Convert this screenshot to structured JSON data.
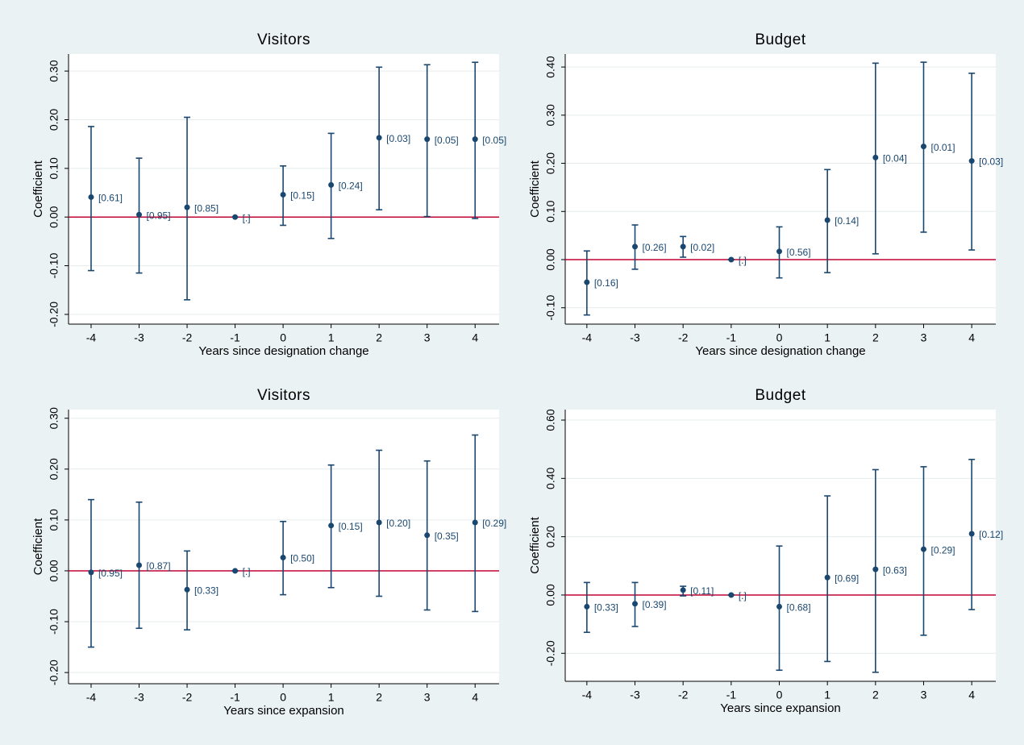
{
  "chart_data": [
    {
      "type": "errorbar",
      "title": "Visitors",
      "xlabel": "Years since designation change",
      "ylabel": "Coefficient",
      "x": [
        -4,
        -3,
        -2,
        -1,
        0,
        1,
        2,
        3,
        4
      ],
      "values": [
        0.041,
        0.005,
        0.02,
        0,
        0.046,
        0.066,
        0.163,
        0.16,
        0.16
      ],
      "ci_low": [
        -0.11,
        -0.115,
        -0.17,
        0,
        -0.017,
        -0.044,
        0.015,
        0.001,
        -0.003
      ],
      "ci_high": [
        0.186,
        0.121,
        0.205,
        0,
        0.105,
        0.172,
        0.308,
        0.313,
        0.318
      ],
      "point_labels": [
        "[0.61]",
        "[0.95]",
        "[0.85]",
        "[.]",
        "[0.15]",
        "[0.24]",
        "[0.03]",
        "[0.05]",
        "[0.05]"
      ],
      "xlim": [
        -4.47,
        4.5
      ],
      "xticks": [
        -4,
        -3,
        -2,
        -1,
        0,
        1,
        2,
        3,
        4
      ],
      "ylim": [
        -0.22,
        0.335
      ],
      "yticks": [
        {
          "value": -0.2,
          "label": "-0.20"
        },
        {
          "value": -0.1,
          "label": "-0.10"
        },
        {
          "value": 0,
          "label": "0.00"
        },
        {
          "value": 0.1,
          "label": "0.10"
        },
        {
          "value": 0.2,
          "label": "0.20"
        },
        {
          "value": 0.3,
          "label": "0.30"
        }
      ],
      "grid": true,
      "color": "#1a476f",
      "hline": 0,
      "hline_color": "#c10534"
    },
    {
      "type": "errorbar",
      "title": "Budget",
      "xlabel": "Years since designation change",
      "ylabel": "Coefficient",
      "x": [
        -4,
        -3,
        -2,
        -1,
        0,
        1,
        2,
        3,
        4
      ],
      "values": [
        -0.047,
        0.027,
        0.027,
        0,
        0.017,
        0.082,
        0.212,
        0.235,
        0.205
      ],
      "ci_low": [
        -0.115,
        -0.02,
        0.005,
        0,
        -0.038,
        -0.027,
        0.012,
        0.057,
        0.02
      ],
      "ci_high": [
        0.018,
        0.072,
        0.048,
        0,
        0.068,
        0.187,
        0.408,
        0.41,
        0.387
      ],
      "point_labels": [
        "[0.16]",
        "[0.26]",
        "[0.02]",
        "[.]",
        "[0.56]",
        "[0.14]",
        "[0.04]",
        "[0.01]",
        "[0.03]"
      ],
      "xlim": [
        -4.45,
        4.5
      ],
      "xticks": [
        -4,
        -3,
        -2,
        -1,
        0,
        1,
        2,
        3,
        4
      ],
      "ylim": [
        -0.134,
        0.427
      ],
      "yticks": [
        {
          "value": -0.1,
          "label": "-0.10"
        },
        {
          "value": 0,
          "label": "0.00"
        },
        {
          "value": 0.1,
          "label": "0.10"
        },
        {
          "value": 0.2,
          "label": "0.20"
        },
        {
          "value": 0.3,
          "label": "0.30"
        },
        {
          "value": 0.4,
          "label": "0.40"
        }
      ],
      "grid": true,
      "color": "#1a476f",
      "hline": 0,
      "hline_color": "#c10534"
    },
    {
      "type": "errorbar",
      "title": "Visitors",
      "xlabel": "Years since expansion",
      "ylabel": "Coefficient",
      "x": [
        -4,
        -3,
        -2,
        -1,
        0,
        1,
        2,
        3,
        4
      ],
      "values": [
        -0.003,
        0.011,
        -0.037,
        0,
        0.026,
        0.089,
        0.095,
        0.07,
        0.095
      ],
      "ci_low": [
        -0.15,
        -0.113,
        -0.116,
        0,
        -0.047,
        -0.033,
        -0.05,
        -0.077,
        -0.08
      ],
      "ci_high": [
        0.14,
        0.135,
        0.039,
        0,
        0.097,
        0.208,
        0.237,
        0.216,
        0.267
      ],
      "point_labels": [
        "[0.95]",
        "[0.87]",
        "[0.33]",
        "[.]",
        "[0.50]",
        "[0.15]",
        "[0.20]",
        "[0.35]",
        "[0.29]"
      ],
      "xlim": [
        -4.47,
        4.5
      ],
      "xticks": [
        -4,
        -3,
        -2,
        -1,
        0,
        1,
        2,
        3,
        4
      ],
      "ylim": [
        -0.222,
        0.317
      ],
      "yticks": [
        {
          "value": -0.2,
          "label": "-0.20"
        },
        {
          "value": -0.1,
          "label": "-0.10"
        },
        {
          "value": 0,
          "label": "0.00"
        },
        {
          "value": 0.1,
          "label": "0.10"
        },
        {
          "value": 0.2,
          "label": "0.20"
        },
        {
          "value": 0.3,
          "label": "0.30"
        }
      ],
      "grid": true,
      "color": "#1a476f",
      "hline": 0,
      "hline_color": "#c10534"
    },
    {
      "type": "errorbar",
      "title": "Budget",
      "xlabel": "Years since expansion",
      "ylabel": "Coefficient",
      "x": [
        -4,
        -3,
        -2,
        -1,
        0,
        1,
        2,
        3,
        4
      ],
      "values": [
        -0.04,
        -0.03,
        0.017,
        0,
        -0.04,
        0.06,
        0.088,
        0.157,
        0.21
      ],
      "ci_low": [
        -0.128,
        -0.108,
        -0.003,
        0,
        -0.258,
        -0.228,
        -0.265,
        -0.138,
        -0.05
      ],
      "ci_high": [
        0.043,
        0.043,
        0.03,
        0,
        0.168,
        0.34,
        0.43,
        0.44,
        0.465
      ],
      "point_labels": [
        "[0.33]",
        "[0.39]",
        "[0.11]",
        "[.]",
        "[0.68]",
        "[0.69]",
        "[0.63]",
        "[0.29]",
        "[0.12]"
      ],
      "xlim": [
        -4.45,
        4.5
      ],
      "xticks": [
        -4,
        -3,
        -2,
        -1,
        0,
        1,
        2,
        3,
        4
      ],
      "ylim": [
        -0.296,
        0.636
      ],
      "yticks": [
        {
          "value": -0.2,
          "label": "-0.20"
        },
        {
          "value": 0,
          "label": "0.00"
        },
        {
          "value": 0.2,
          "label": "0.20"
        },
        {
          "value": 0.4,
          "label": "0.40"
        },
        {
          "value": 0.6,
          "label": "0.60"
        }
      ],
      "grid": true,
      "color": "#1a476f",
      "hline": 0,
      "hline_color": "#c10534"
    }
  ]
}
